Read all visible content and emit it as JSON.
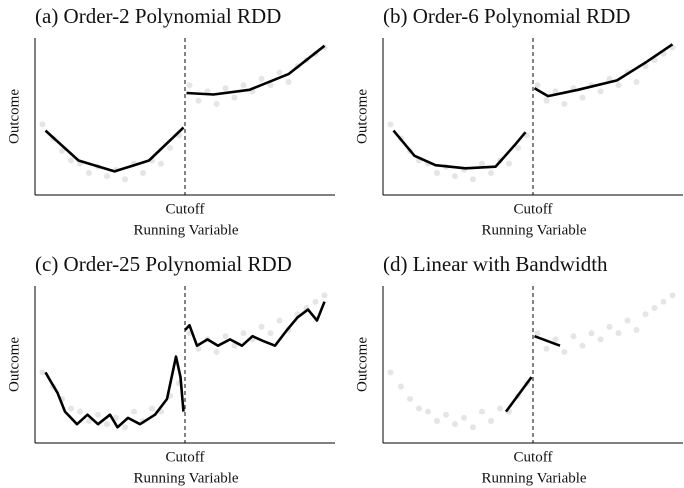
{
  "chart_data": [
    {
      "type": "line",
      "title": "(a) Order-2 Polynomial RDD",
      "xlabel": "Running Variable",
      "ylabel": "Outcome",
      "xlim": [
        -1,
        1
      ],
      "ylim": [
        0,
        1
      ],
      "xticks": [
        {
          "value": 0,
          "label": "Cutoff"
        }
      ],
      "points": {
        "color": "#d4d4d4",
        "x": [
          -0.95,
          -0.88,
          -0.82,
          -0.76,
          -0.7,
          -0.64,
          -0.58,
          -0.52,
          -0.46,
          -0.4,
          -0.34,
          -0.28,
          -0.22,
          -0.16,
          -0.1,
          -0.04,
          0.03,
          0.09,
          0.15,
          0.21,
          0.27,
          0.33,
          0.39,
          0.45,
          0.51,
          0.57,
          0.63,
          0.69,
          0.75,
          0.81,
          0.87,
          0.93
        ],
        "y": [
          0.45,
          0.36,
          0.28,
          0.22,
          0.2,
          0.14,
          0.18,
          0.12,
          0.16,
          0.1,
          0.2,
          0.14,
          0.22,
          0.2,
          0.3,
          0.38,
          0.7,
          0.6,
          0.66,
          0.58,
          0.68,
          0.62,
          0.7,
          0.66,
          0.74,
          0.7,
          0.78,
          0.72,
          0.82,
          0.86,
          0.9,
          0.94
        ]
      },
      "series": [
        {
          "color": "#000000",
          "x": [
            -0.93,
            -0.71,
            -0.47,
            -0.24,
            -0.01
          ],
          "values": [
            0.41,
            0.22,
            0.15,
            0.22,
            0.43
          ]
        },
        {
          "color": "#000000",
          "x": [
            0.01,
            0.19,
            0.43,
            0.69,
            0.93
          ],
          "values": [
            0.65,
            0.64,
            0.67,
            0.77,
            0.95
          ]
        }
      ]
    },
    {
      "type": "line",
      "title": "(b) Order-6 Polynomial RDD",
      "xlabel": "Running Variable",
      "ylabel": "Outcome",
      "xlim": [
        -1,
        1
      ],
      "ylim": [
        0,
        1
      ],
      "xticks": [
        {
          "value": 0,
          "label": "Cutoff"
        }
      ],
      "points": {
        "color": "#d4d4d4",
        "x": [
          -0.95,
          -0.88,
          -0.82,
          -0.76,
          -0.7,
          -0.64,
          -0.58,
          -0.52,
          -0.46,
          -0.4,
          -0.34,
          -0.28,
          -0.22,
          -0.16,
          -0.1,
          -0.04,
          0.03,
          0.09,
          0.15,
          0.21,
          0.27,
          0.33,
          0.39,
          0.45,
          0.51,
          0.57,
          0.63,
          0.69,
          0.75,
          0.81,
          0.87,
          0.93
        ],
        "y": [
          0.45,
          0.36,
          0.28,
          0.22,
          0.2,
          0.14,
          0.18,
          0.12,
          0.16,
          0.1,
          0.2,
          0.14,
          0.22,
          0.2,
          0.3,
          0.38,
          0.7,
          0.6,
          0.66,
          0.58,
          0.68,
          0.62,
          0.7,
          0.66,
          0.74,
          0.7,
          0.78,
          0.72,
          0.82,
          0.86,
          0.9,
          0.94
        ]
      },
      "series": [
        {
          "color": "#000000",
          "x": [
            -0.93,
            -0.79,
            -0.65,
            -0.45,
            -0.25,
            -0.12,
            -0.05
          ],
          "values": [
            0.41,
            0.25,
            0.19,
            0.17,
            0.18,
            0.32,
            0.4
          ]
        },
        {
          "color": "#000000",
          "x": [
            0.01,
            0.1,
            0.3,
            0.56,
            0.76,
            0.93
          ],
          "values": [
            0.68,
            0.63,
            0.67,
            0.73,
            0.85,
            0.96
          ]
        }
      ]
    },
    {
      "type": "line",
      "title": "(c) Order-25 Polynomial RDD",
      "xlabel": "Running Variable",
      "ylabel": "Outcome",
      "xlim": [
        -1,
        1
      ],
      "ylim": [
        0,
        1
      ],
      "xticks": [
        {
          "value": 0,
          "label": "Cutoff"
        }
      ],
      "points": {
        "color": "#d4d4d4",
        "x": [
          -0.95,
          -0.88,
          -0.82,
          -0.76,
          -0.7,
          -0.64,
          -0.58,
          -0.52,
          -0.46,
          -0.4,
          -0.34,
          -0.28,
          -0.22,
          -0.16,
          -0.1,
          -0.04,
          0.03,
          0.09,
          0.15,
          0.21,
          0.27,
          0.33,
          0.39,
          0.45,
          0.51,
          0.57,
          0.63,
          0.69,
          0.75,
          0.81,
          0.87,
          0.93
        ],
        "y": [
          0.45,
          0.36,
          0.28,
          0.22,
          0.2,
          0.14,
          0.18,
          0.12,
          0.16,
          0.1,
          0.2,
          0.14,
          0.22,
          0.2,
          0.3,
          0.38,
          0.7,
          0.6,
          0.66,
          0.58,
          0.68,
          0.62,
          0.7,
          0.66,
          0.74,
          0.7,
          0.78,
          0.72,
          0.82,
          0.86,
          0.9,
          0.94
        ]
      },
      "series": [
        {
          "color": "#000000",
          "x": [
            -0.93,
            -0.9,
            -0.85,
            -0.8,
            -0.72,
            -0.65,
            -0.58,
            -0.5,
            -0.45,
            -0.38,
            -0.3,
            -0.2,
            -0.12,
            -0.06,
            -0.03,
            -0.01
          ],
          "values": [
            0.45,
            0.4,
            0.32,
            0.2,
            0.12,
            0.18,
            0.12,
            0.18,
            0.1,
            0.16,
            0.12,
            0.18,
            0.28,
            0.55,
            0.42,
            0.2
          ]
        },
        {
          "color": "#000000",
          "x": [
            0,
            0.03,
            0.08,
            0.15,
            0.22,
            0.3,
            0.38,
            0.45,
            0.52,
            0.6,
            0.68,
            0.75,
            0.82,
            0.88,
            0.93
          ],
          "values": [
            0.72,
            0.75,
            0.62,
            0.66,
            0.62,
            0.66,
            0.62,
            0.68,
            0.65,
            0.62,
            0.72,
            0.8,
            0.85,
            0.78,
            0.9
          ]
        }
      ]
    },
    {
      "type": "line",
      "title": "(d) Linear with Bandwidth",
      "xlabel": "Running Variable",
      "ylabel": "Outcome",
      "xlim": [
        -1,
        1
      ],
      "ylim": [
        0,
        1
      ],
      "xticks": [
        {
          "value": 0,
          "label": "Cutoff"
        }
      ],
      "points": {
        "color": "#d4d4d4",
        "x": [
          -0.95,
          -0.88,
          -0.82,
          -0.76,
          -0.7,
          -0.64,
          -0.58,
          -0.52,
          -0.46,
          -0.4,
          -0.34,
          -0.28,
          -0.22,
          -0.16,
          -0.1,
          -0.04,
          0.03,
          0.09,
          0.15,
          0.21,
          0.27,
          0.33,
          0.39,
          0.45,
          0.51,
          0.57,
          0.63,
          0.69,
          0.75,
          0.81,
          0.87,
          0.93
        ],
        "y": [
          0.45,
          0.36,
          0.28,
          0.22,
          0.2,
          0.14,
          0.18,
          0.12,
          0.16,
          0.1,
          0.2,
          0.14,
          0.22,
          0.2,
          0.3,
          0.38,
          0.7,
          0.6,
          0.66,
          0.58,
          0.68,
          0.62,
          0.7,
          0.66,
          0.74,
          0.7,
          0.78,
          0.72,
          0.82,
          0.86,
          0.9,
          0.94
        ]
      },
      "series": [
        {
          "color": "#000000",
          "x": [
            -0.18,
            -0.01
          ],
          "values": [
            0.2,
            0.42
          ]
        },
        {
          "color": "#000000",
          "x": [
            0.01,
            0.18
          ],
          "values": [
            0.68,
            0.62
          ]
        }
      ]
    }
  ]
}
